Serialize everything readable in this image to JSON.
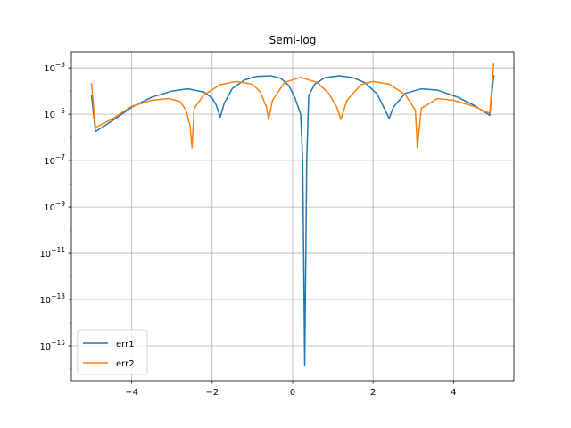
{
  "chart_data": {
    "type": "line",
    "title": "Semi-log",
    "xlabel": "",
    "ylabel": "",
    "yscale": "log",
    "xlim": [
      -5.5,
      5.5
    ],
    "ylim_exp": [
      -16.5,
      -2.3
    ],
    "grid": true,
    "legend_position": "lower-left",
    "x_ticks": [
      {
        "value": -4,
        "label": "−4"
      },
      {
        "value": -2,
        "label": "−2"
      },
      {
        "value": 0,
        "label": "0"
      },
      {
        "value": 2,
        "label": "2"
      },
      {
        "value": 4,
        "label": "4"
      }
    ],
    "y_ticks": [
      {
        "exp": -3,
        "base": "10",
        "sup": "−3"
      },
      {
        "exp": -5,
        "base": "10",
        "sup": "−5"
      },
      {
        "exp": -7,
        "base": "10",
        "sup": "−7"
      },
      {
        "exp": -9,
        "base": "10",
        "sup": "−9"
      },
      {
        "exp": -11,
        "base": "10",
        "sup": "−11"
      },
      {
        "exp": -13,
        "base": "10",
        "sup": "−13"
      },
      {
        "exp": -15,
        "base": "10",
        "sup": "−15"
      }
    ],
    "series": [
      {
        "name": "err1",
        "color": "#1f77b4",
        "points": [
          [
            -5.0,
            6.5e-05
          ],
          [
            -4.9,
            1.8e-06
          ],
          [
            -4.5,
            5e-06
          ],
          [
            -4.0,
            2e-05
          ],
          [
            -3.5,
            5.5e-05
          ],
          [
            -3.0,
            0.0001
          ],
          [
            -2.6,
            0.000125
          ],
          [
            -2.2,
            9e-05
          ],
          [
            -2.0,
            5e-05
          ],
          [
            -1.9,
            2.5e-05
          ],
          [
            -1.8,
            7.5e-06
          ],
          [
            -1.7,
            3e-05
          ],
          [
            -1.5,
            0.00013
          ],
          [
            -1.2,
            0.0003
          ],
          [
            -0.9,
            0.00043
          ],
          [
            -0.55,
            0.00046
          ],
          [
            -0.3,
            0.00036
          ],
          [
            -0.1,
            0.00018
          ],
          [
            0.05,
            5.5e-05
          ],
          [
            0.2,
            1e-05
          ],
          [
            0.25,
            1e-07
          ],
          [
            0.3,
            1.5e-16
          ],
          [
            0.35,
            1e-07
          ],
          [
            0.4,
            6.5e-05
          ],
          [
            0.55,
            0.0002
          ],
          [
            0.8,
            0.00038
          ],
          [
            1.15,
            0.00046
          ],
          [
            1.5,
            0.00038
          ],
          [
            1.8,
            0.00023
          ],
          [
            2.1,
            7.5e-05
          ],
          [
            2.3,
            1.5e-05
          ],
          [
            2.4,
            6.5e-06
          ],
          [
            2.5,
            2e-05
          ],
          [
            2.8,
            8e-05
          ],
          [
            3.2,
            0.000125
          ],
          [
            3.6,
            0.00011
          ],
          [
            4.1,
            5.5e-05
          ],
          [
            4.5,
            2.5e-05
          ],
          [
            4.9,
            9e-06
          ],
          [
            5.0,
            0.0005
          ]
        ]
      },
      {
        "name": "err2",
        "color": "#ff7f0e",
        "points": [
          [
            -5.0,
            0.00022
          ],
          [
            -4.9,
            2.7e-06
          ],
          [
            -4.5,
            6e-06
          ],
          [
            -4.0,
            2.2e-05
          ],
          [
            -3.5,
            4e-05
          ],
          [
            -3.1,
            4.8e-05
          ],
          [
            -2.8,
            3.6e-05
          ],
          [
            -2.65,
            1.5e-05
          ],
          [
            -2.55,
            3.2e-06
          ],
          [
            -2.5,
            3.5e-07
          ],
          [
            -2.45,
            1.8e-05
          ],
          [
            -2.2,
            7e-05
          ],
          [
            -1.8,
            0.00019
          ],
          [
            -1.4,
            0.00026
          ],
          [
            -1.0,
            0.0002
          ],
          [
            -0.8,
            9e-05
          ],
          [
            -0.65,
            2e-05
          ],
          [
            -0.6,
            6e-06
          ],
          [
            -0.5,
            4e-05
          ],
          [
            -0.2,
            0.00024
          ],
          [
            0.2,
            0.00039
          ],
          [
            0.6,
            0.00024
          ],
          [
            0.9,
            8e-05
          ],
          [
            1.1,
            2e-05
          ],
          [
            1.2,
            6e-06
          ],
          [
            1.35,
            4e-05
          ],
          [
            1.7,
            0.00019
          ],
          [
            2.0,
            0.00026
          ],
          [
            2.4,
            0.0002
          ],
          [
            2.8,
            7e-05
          ],
          [
            3.05,
            1.5e-05
          ],
          [
            3.1,
            3.5e-07
          ],
          [
            3.2,
            1.8e-05
          ],
          [
            3.6,
            4.8e-05
          ],
          [
            4.0,
            4e-05
          ],
          [
            4.5,
            2.2e-05
          ],
          [
            4.9,
            1.1e-05
          ],
          [
            5.0,
            0.0016
          ]
        ]
      }
    ]
  }
}
